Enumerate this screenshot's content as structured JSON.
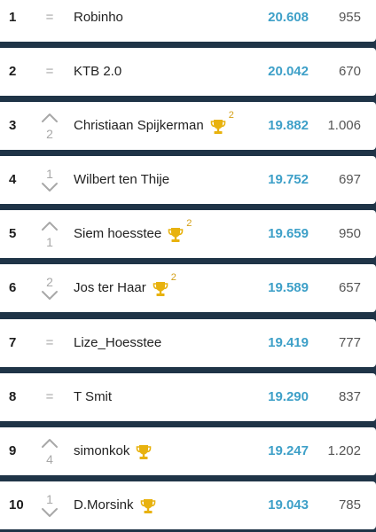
{
  "rows": [
    {
      "rank": "1",
      "change": "=",
      "change_dir": "same",
      "name": "Robinho",
      "trophy": false,
      "trophy_count": "",
      "score": "20.608",
      "points": "955"
    },
    {
      "rank": "2",
      "change": "=",
      "change_dir": "same",
      "name": "KTB 2.0",
      "trophy": false,
      "trophy_count": "",
      "score": "20.042",
      "points": "670"
    },
    {
      "rank": "3",
      "change": "2",
      "change_dir": "up",
      "name": "Christiaan Spijkerman",
      "trophy": true,
      "trophy_count": "2",
      "score": "19.882",
      "points": "1.006"
    },
    {
      "rank": "4",
      "change": "1",
      "change_dir": "down",
      "name": "Wilbert ten Thije",
      "trophy": false,
      "trophy_count": "",
      "score": "19.752",
      "points": "697"
    },
    {
      "rank": "5",
      "change": "1",
      "change_dir": "up",
      "name": "Siem hoesstee",
      "trophy": true,
      "trophy_count": "2",
      "score": "19.659",
      "points": "950"
    },
    {
      "rank": "6",
      "change": "2",
      "change_dir": "down",
      "name": "Jos ter Haar",
      "trophy": true,
      "trophy_count": "2",
      "score": "19.589",
      "points": "657"
    },
    {
      "rank": "7",
      "change": "=",
      "change_dir": "same",
      "name": "Lize_Hoesstee",
      "trophy": false,
      "trophy_count": "",
      "score": "19.419",
      "points": "777"
    },
    {
      "rank": "8",
      "change": "=",
      "change_dir": "same",
      "name": "T Smit",
      "trophy": false,
      "trophy_count": "",
      "score": "19.290",
      "points": "837"
    },
    {
      "rank": "9",
      "change": "4",
      "change_dir": "up",
      "name": "simonkok",
      "trophy": true,
      "trophy_count": "",
      "score": "19.247",
      "points": "1.202"
    },
    {
      "rank": "10",
      "change": "1",
      "change_dir": "down",
      "name": "D.Morsink",
      "trophy": true,
      "trophy_count": "",
      "score": "19.043",
      "points": "785"
    }
  ],
  "colors": {
    "background": "#1f3447",
    "score": "#3ea0c8",
    "trophy": "#e8b20e",
    "change": "#a8a8a8"
  },
  "icons": {
    "up": "chevron-up-icon",
    "down": "chevron-down-icon",
    "trophy": "trophy-icon"
  }
}
